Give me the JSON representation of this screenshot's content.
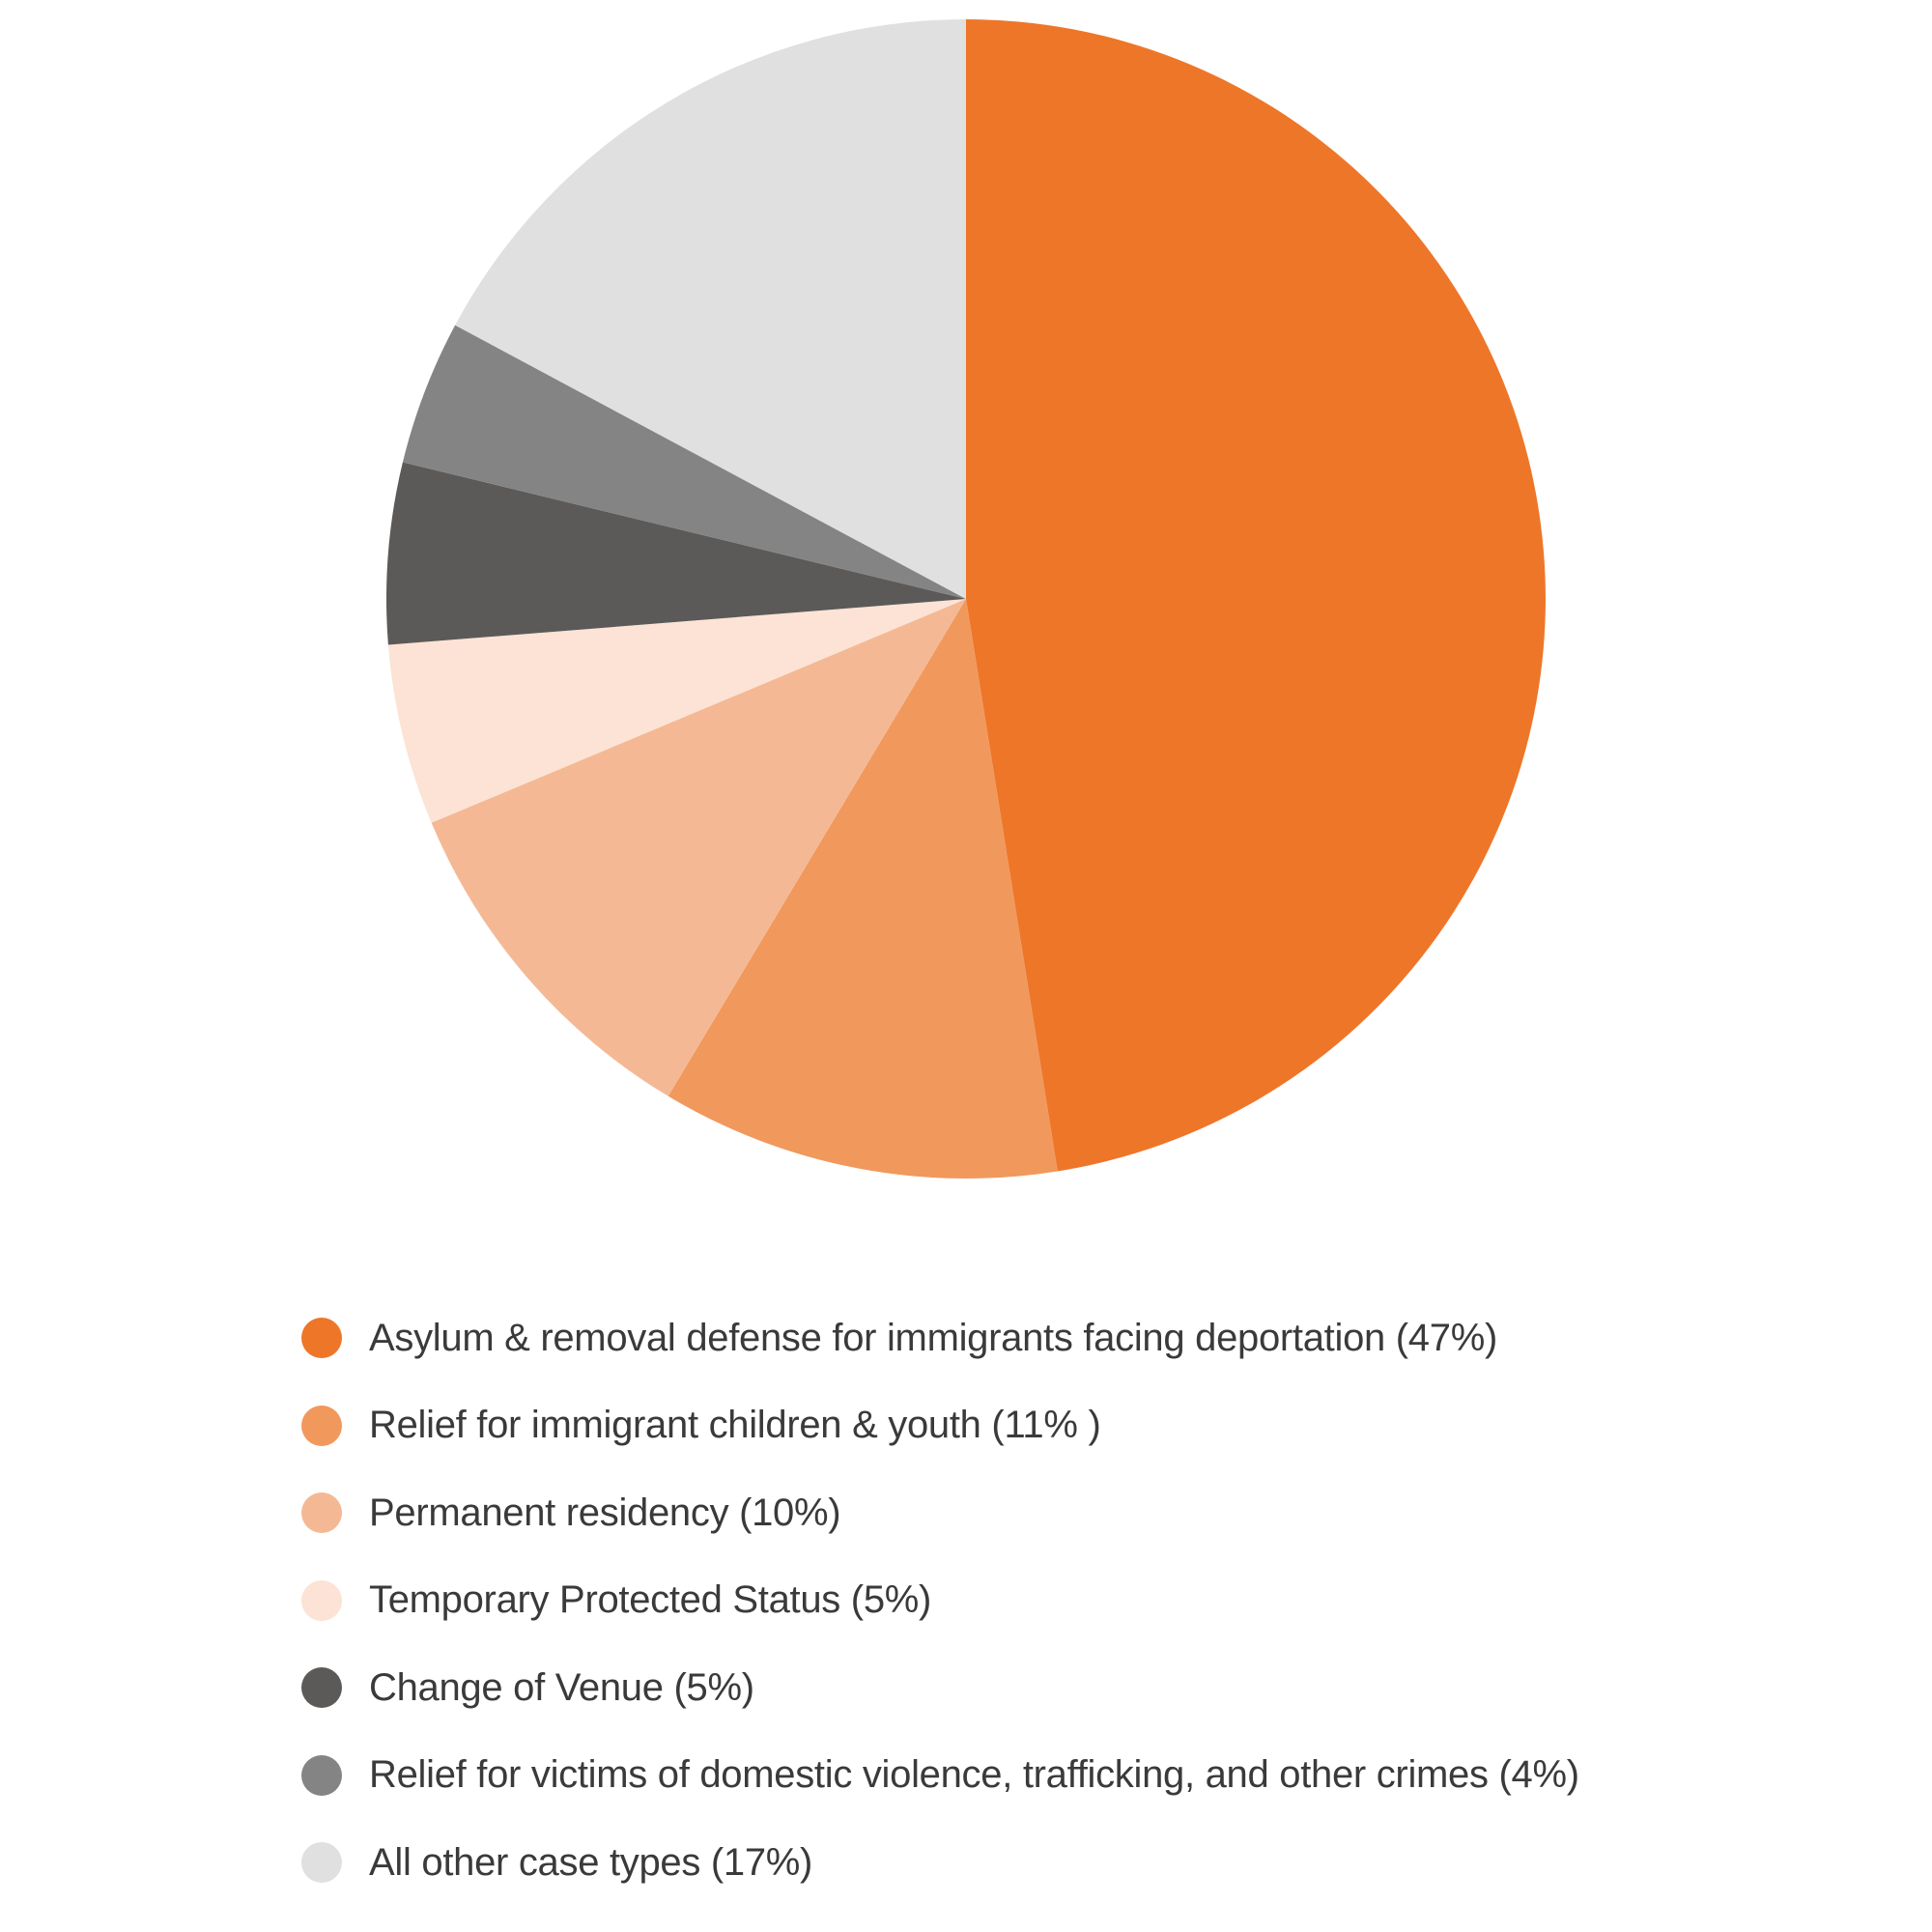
{
  "chart_data": {
    "type": "pie",
    "title": "",
    "start_angle": "12 o'clock",
    "direction": "clockwise",
    "legend_placement": "bottom",
    "slices": [
      {
        "label": "Asylum & removal defense for immigrants facing deportation (47%)",
        "value": 47,
        "color": "#ee7629"
      },
      {
        "label": "Relief for immigrant children & youth (11% )",
        "value": 11,
        "color": "#f1985d"
      },
      {
        "label": "Permanent residency (10%)",
        "value": 10,
        "color": "#f4b994"
      },
      {
        "label": "Temporary Protected Status (5%)",
        "value": 5,
        "color": "#fce3d5"
      },
      {
        "label": "Change of Venue (5%)",
        "value": 5,
        "color": "#5b5a58"
      },
      {
        "label": "Relief for victims of domestic violence, trafficking, and other crimes (4%)",
        "value": 4,
        "color": "#858484"
      },
      {
        "label": "All other case types (17%)",
        "value": 17,
        "color": "#e0e0e0"
      }
    ]
  }
}
